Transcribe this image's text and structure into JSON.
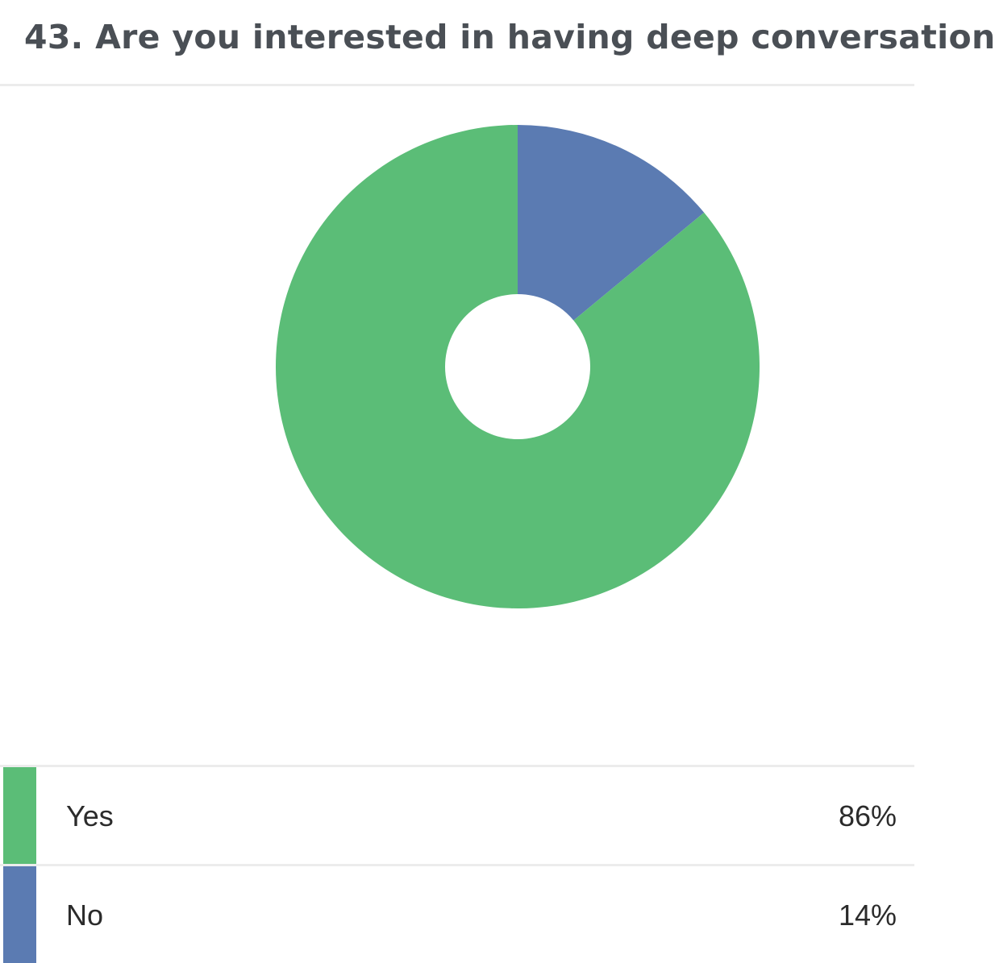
{
  "question": {
    "title": "43. Are you interested in having deep conversation"
  },
  "chart_data": {
    "type": "pie",
    "donut": true,
    "categories": [
      "Yes",
      "No"
    ],
    "values": [
      86,
      14
    ],
    "unit": "%",
    "colors": [
      "#5bbd77",
      "#5b7bb2"
    ],
    "legend_placement": "bottom"
  },
  "legend": {
    "rows": [
      {
        "label": "Yes",
        "value": "86%",
        "color": "#5bbd77"
      },
      {
        "label": "No",
        "value": "14%",
        "color": "#5b7bb2"
      }
    ]
  }
}
